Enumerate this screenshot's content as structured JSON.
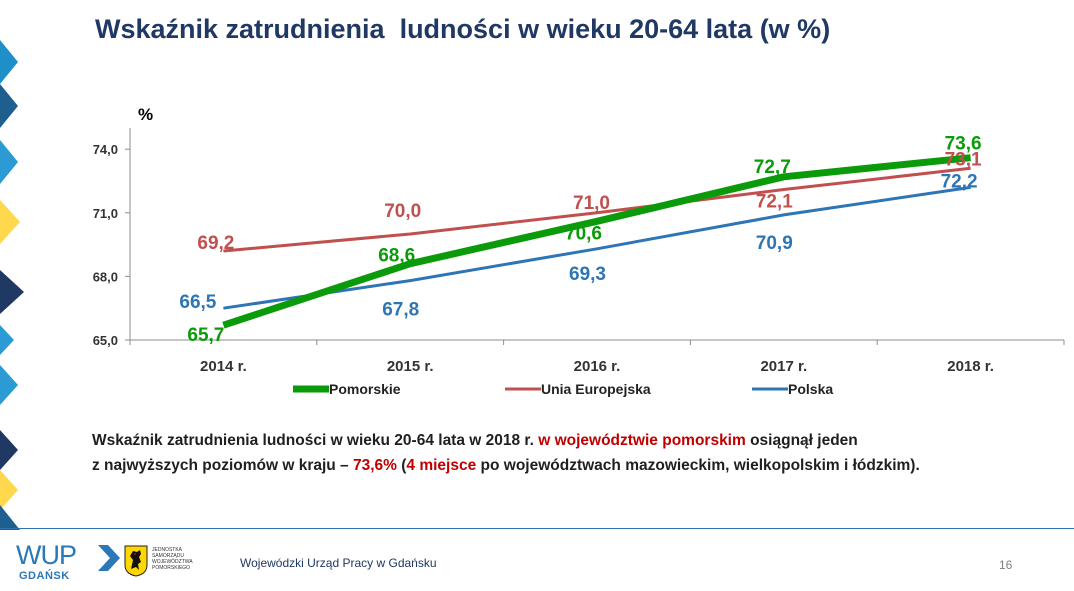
{
  "slide": {
    "title": "Wskaźnik zatrudnienia  ludności w wieku 20-64 lata (w %)"
  },
  "chart_data": {
    "type": "line",
    "ylabel": "%",
    "xlabel": "",
    "categories": [
      "2014 r.",
      "2015 r.",
      "2016 r.",
      "2017 r.",
      "2018 r."
    ],
    "ylim": [
      65.0,
      75.0
    ],
    "yticks": [
      "65,0",
      "68,0",
      "71,0",
      "74,0"
    ],
    "ytick_values": [
      65.0,
      68.0,
      71.0,
      74.0
    ],
    "grid": false,
    "legend_position": "bottom",
    "series": [
      {
        "name": "Pomorskie",
        "color": "#0a9a0a",
        "values": [
          65.7,
          68.6,
          70.6,
          72.7,
          73.6
        ],
        "labels": [
          "65,7",
          "68,6",
          "70,6",
          "72,7",
          "73,6"
        ]
      },
      {
        "name": "Unia Europejska",
        "color": "#c0504d",
        "values": [
          69.2,
          70.0,
          71.0,
          72.1,
          73.1
        ],
        "labels": [
          "69,2",
          "70,0",
          "71,0",
          "72,1",
          "73,1"
        ]
      },
      {
        "name": "Polska",
        "color": "#2e75b6",
        "values": [
          66.5,
          67.8,
          69.3,
          70.9,
          72.2
        ],
        "labels": [
          "66,5",
          "67,8",
          "69,3",
          "70,9",
          "72,2"
        ]
      }
    ]
  },
  "summary": {
    "line1_a": "Wskaźnik zatrudnienia ludności w wieku 20-64 lata w 2018 r. ",
    "line1_b": "w województwie pomorskim",
    "line1_c": " osiągnął jeden",
    "line2_a": "z najwyższych poziomów w kraju – ",
    "line2_b": "73,6%",
    "line2_c": " (",
    "line2_d": "4 miejsce",
    "line2_e": " po województwach mazowieckim, wielkopolskim i łódzkim)."
  },
  "footer": {
    "logo_text": "WUP",
    "logo_subtext": "GDAŃSK",
    "crest_text": "JEDNOSTKA SAMORZĄDU WOJEWÓDZTWA POMORSKIEGO",
    "organization": "Wojewódzki Urząd Pracy w Gdańsku",
    "page_number": "16"
  },
  "colors": {
    "title": "#1f3864",
    "highlight": "#c00000",
    "accent_blue": "#2a78b8",
    "deco_yellow": "#ffd84d",
    "deco_dark": "#1f3864"
  },
  "icons": {
    "logo": "wup-arrow-icon",
    "crest": "pomorskie-griffin-icon"
  }
}
